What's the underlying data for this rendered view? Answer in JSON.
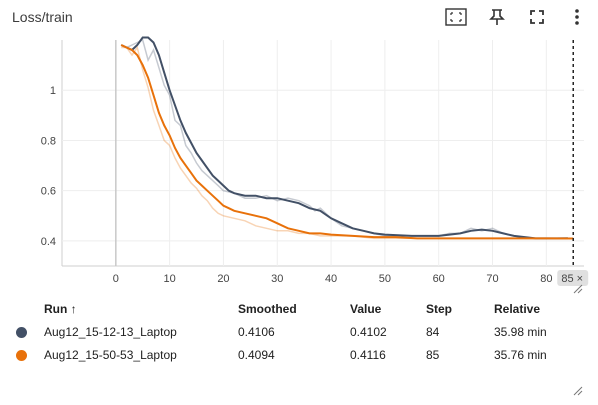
{
  "header": {
    "title": "Loss/train",
    "icons": [
      "fit-domain-icon",
      "pin-icon",
      "fullscreen-icon",
      "more-vert-icon"
    ]
  },
  "chart_data": {
    "type": "line",
    "title": "Loss/train",
    "xlabel": "",
    "ylabel": "",
    "xlim": [
      -10,
      87
    ],
    "ylim": [
      0.3,
      1.2
    ],
    "x_ticks": [
      0,
      10,
      20,
      30,
      40,
      50,
      60,
      70,
      80
    ],
    "y_ticks": [
      0.4,
      0.6,
      0.8,
      1
    ],
    "grid": true,
    "hover_step": 85,
    "hover_label": "85 ×",
    "series": [
      {
        "name": "Aug12_15-12-13_Laptop",
        "color": "#425066",
        "raw": [
          [
            1,
            1.18
          ],
          [
            2,
            1.17
          ],
          [
            3,
            1.18
          ],
          [
            4,
            1.19
          ],
          [
            5,
            1.2
          ],
          [
            6,
            1.12
          ],
          [
            7,
            1.16
          ],
          [
            8,
            1.09
          ],
          [
            9,
            1.02
          ],
          [
            10,
            0.98
          ],
          [
            11,
            0.88
          ],
          [
            12,
            0.86
          ],
          [
            13,
            0.78
          ],
          [
            14,
            0.75
          ],
          [
            15,
            0.71
          ],
          [
            16,
            0.68
          ],
          [
            17,
            0.66
          ],
          [
            18,
            0.64
          ],
          [
            19,
            0.62
          ],
          [
            20,
            0.6
          ],
          [
            22,
            0.59
          ],
          [
            24,
            0.57
          ],
          [
            26,
            0.57
          ],
          [
            28,
            0.58
          ],
          [
            30,
            0.56
          ],
          [
            32,
            0.57
          ],
          [
            34,
            0.56
          ],
          [
            36,
            0.54
          ],
          [
            37,
            0.52
          ],
          [
            38,
            0.53
          ],
          [
            40,
            0.49
          ],
          [
            42,
            0.46
          ],
          [
            44,
            0.45
          ],
          [
            46,
            0.44
          ],
          [
            48,
            0.43
          ],
          [
            50,
            0.42
          ],
          [
            52,
            0.42
          ],
          [
            55,
            0.42
          ],
          [
            58,
            0.42
          ],
          [
            60,
            0.42
          ],
          [
            62,
            0.43
          ],
          [
            64,
            0.43
          ],
          [
            66,
            0.45
          ],
          [
            68,
            0.44
          ],
          [
            70,
            0.45
          ],
          [
            72,
            0.43
          ],
          [
            74,
            0.42
          ],
          [
            76,
            0.41
          ],
          [
            78,
            0.41
          ],
          [
            80,
            0.41
          ],
          [
            82,
            0.41
          ],
          [
            84,
            0.41
          ]
        ],
        "smoothed": [
          [
            1,
            1.18
          ],
          [
            2,
            1.17
          ],
          [
            3,
            1.16
          ],
          [
            4,
            1.18
          ],
          [
            5,
            1.21
          ],
          [
            6,
            1.21
          ],
          [
            7,
            1.19
          ],
          [
            8,
            1.14
          ],
          [
            9,
            1.07
          ],
          [
            10,
            1.0
          ],
          [
            11,
            0.94
          ],
          [
            12,
            0.88
          ],
          [
            13,
            0.83
          ],
          [
            14,
            0.79
          ],
          [
            15,
            0.75
          ],
          [
            16,
            0.72
          ],
          [
            17,
            0.69
          ],
          [
            18,
            0.66
          ],
          [
            19,
            0.64
          ],
          [
            20,
            0.62
          ],
          [
            21,
            0.6
          ],
          [
            22,
            0.59
          ],
          [
            24,
            0.58
          ],
          [
            26,
            0.58
          ],
          [
            28,
            0.57
          ],
          [
            30,
            0.57
          ],
          [
            32,
            0.56
          ],
          [
            34,
            0.55
          ],
          [
            36,
            0.53
          ],
          [
            38,
            0.52
          ],
          [
            40,
            0.49
          ],
          [
            42,
            0.47
          ],
          [
            44,
            0.45
          ],
          [
            46,
            0.44
          ],
          [
            48,
            0.43
          ],
          [
            50,
            0.425
          ],
          [
            55,
            0.42
          ],
          [
            60,
            0.42
          ],
          [
            62,
            0.425
          ],
          [
            64,
            0.43
          ],
          [
            66,
            0.44
          ],
          [
            68,
            0.445
          ],
          [
            70,
            0.44
          ],
          [
            72,
            0.43
          ],
          [
            74,
            0.42
          ],
          [
            76,
            0.415
          ],
          [
            78,
            0.41
          ],
          [
            80,
            0.41
          ],
          [
            82,
            0.41
          ],
          [
            84,
            0.4106
          ]
        ]
      },
      {
        "name": "Aug12_15-50-53_Laptop",
        "color": "#e8710a",
        "raw": [
          [
            1,
            1.17
          ],
          [
            2,
            1.17
          ],
          [
            3,
            1.14
          ],
          [
            4,
            1.17
          ],
          [
            5,
            1.08
          ],
          [
            6,
            1.01
          ],
          [
            7,
            0.92
          ],
          [
            8,
            0.86
          ],
          [
            9,
            0.8
          ],
          [
            10,
            0.78
          ],
          [
            11,
            0.73
          ],
          [
            12,
            0.69
          ],
          [
            13,
            0.66
          ],
          [
            14,
            0.63
          ],
          [
            15,
            0.61
          ],
          [
            16,
            0.58
          ],
          [
            17,
            0.56
          ],
          [
            18,
            0.53
          ],
          [
            19,
            0.51
          ],
          [
            20,
            0.5
          ],
          [
            22,
            0.49
          ],
          [
            24,
            0.48
          ],
          [
            26,
            0.46
          ],
          [
            28,
            0.45
          ],
          [
            30,
            0.44
          ],
          [
            32,
            0.44
          ],
          [
            34,
            0.43
          ],
          [
            36,
            0.43
          ],
          [
            38,
            0.42
          ],
          [
            40,
            0.42
          ],
          [
            44,
            0.42
          ],
          [
            48,
            0.41
          ],
          [
            52,
            0.41
          ],
          [
            56,
            0.41
          ],
          [
            60,
            0.41
          ],
          [
            64,
            0.41
          ],
          [
            68,
            0.41
          ],
          [
            72,
            0.41
          ],
          [
            76,
            0.41
          ],
          [
            80,
            0.41
          ],
          [
            85,
            0.41
          ]
        ],
        "smoothed": [
          [
            1,
            1.18
          ],
          [
            2,
            1.17
          ],
          [
            3,
            1.16
          ],
          [
            4,
            1.14
          ],
          [
            5,
            1.1
          ],
          [
            6,
            1.05
          ],
          [
            7,
            0.98
          ],
          [
            8,
            0.91
          ],
          [
            9,
            0.86
          ],
          [
            10,
            0.82
          ],
          [
            11,
            0.77
          ],
          [
            12,
            0.73
          ],
          [
            13,
            0.7
          ],
          [
            14,
            0.67
          ],
          [
            15,
            0.64
          ],
          [
            16,
            0.62
          ],
          [
            17,
            0.6
          ],
          [
            18,
            0.58
          ],
          [
            19,
            0.56
          ],
          [
            20,
            0.54
          ],
          [
            21,
            0.53
          ],
          [
            22,
            0.52
          ],
          [
            24,
            0.51
          ],
          [
            26,
            0.5
          ],
          [
            28,
            0.49
          ],
          [
            30,
            0.47
          ],
          [
            32,
            0.45
          ],
          [
            34,
            0.44
          ],
          [
            36,
            0.43
          ],
          [
            38,
            0.43
          ],
          [
            40,
            0.425
          ],
          [
            44,
            0.42
          ],
          [
            48,
            0.415
          ],
          [
            52,
            0.415
          ],
          [
            56,
            0.41
          ],
          [
            60,
            0.41
          ],
          [
            64,
            0.41
          ],
          [
            68,
            0.41
          ],
          [
            72,
            0.41
          ],
          [
            76,
            0.41
          ],
          [
            80,
            0.41
          ],
          [
            85,
            0.4094
          ]
        ]
      }
    ]
  },
  "table": {
    "headers": {
      "run": "Run ↑",
      "smoothed": "Smoothed",
      "value": "Value",
      "step": "Step",
      "relative": "Relative"
    },
    "rows": [
      {
        "color": "#425066",
        "run": "Aug12_15-12-13_Laptop",
        "smoothed": "0.4106",
        "value": "0.4102",
        "step": "84",
        "relative": "35.98 min"
      },
      {
        "color": "#e8710a",
        "run": "Aug12_15-50-53_Laptop",
        "smoothed": "0.4094",
        "value": "0.4116",
        "step": "85",
        "relative": "35.76 min"
      }
    ]
  }
}
